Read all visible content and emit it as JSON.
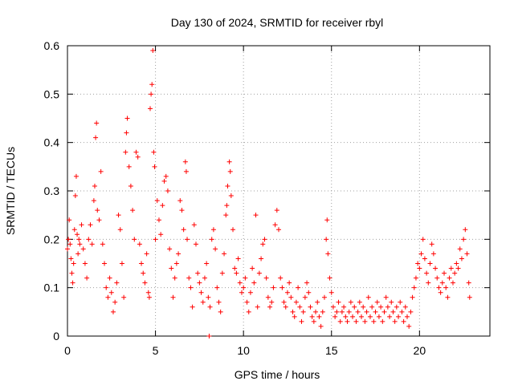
{
  "chart_data": {
    "type": "scatter",
    "title": "Day 130 of 2024, SRMTID for receiver rbyl",
    "xlabel": "GPS time / hours",
    "ylabel": "SRMTID / TECUs",
    "xlim": [
      0,
      24
    ],
    "ylim": [
      0,
      0.6
    ],
    "xticks": [
      "0",
      "5",
      "10",
      "15",
      "20"
    ],
    "xtick_values": [
      0,
      5,
      10,
      15,
      20
    ],
    "yticks": [
      "0",
      "0.1",
      "0.2",
      "0.3",
      "0.4",
      "0.5",
      "0.6"
    ],
    "ytick_values": [
      0,
      0.1,
      0.2,
      0.3,
      0.4,
      0.5,
      0.6
    ],
    "grid": true,
    "marker": "plus",
    "color": "#ff0000",
    "series": [
      {
        "name": "SRMTID",
        "points": [
          [
            0.0,
            0.18
          ],
          [
            0.05,
            0.2
          ],
          [
            0.1,
            0.24
          ],
          [
            0.15,
            0.19
          ],
          [
            0.2,
            0.16
          ],
          [
            0.25,
            0.13
          ],
          [
            0.3,
            0.11
          ],
          [
            0.35,
            0.15
          ],
          [
            0.4,
            0.22
          ],
          [
            0.45,
            0.29
          ],
          [
            0.5,
            0.33
          ],
          [
            0.55,
            0.21
          ],
          [
            0.6,
            0.17
          ],
          [
            0.65,
            0.2
          ],
          [
            0.7,
            0.19
          ],
          [
            0.8,
            0.23
          ],
          [
            0.9,
            0.18
          ],
          [
            1.0,
            0.15
          ],
          [
            1.1,
            0.12
          ],
          [
            1.2,
            0.2
          ],
          [
            1.3,
            0.23
          ],
          [
            1.4,
            0.19
          ],
          [
            1.5,
            0.28
          ],
          [
            1.55,
            0.31
          ],
          [
            1.6,
            0.41
          ],
          [
            1.65,
            0.44
          ],
          [
            1.7,
            0.26
          ],
          [
            1.8,
            0.24
          ],
          [
            1.9,
            0.34
          ],
          [
            2.0,
            0.19
          ],
          [
            2.1,
            0.15
          ],
          [
            2.2,
            0.1
          ],
          [
            2.3,
            0.08
          ],
          [
            2.4,
            0.12
          ],
          [
            2.5,
            0.09
          ],
          [
            2.6,
            0.05
          ],
          [
            2.7,
            0.07
          ],
          [
            2.8,
            0.11
          ],
          [
            2.9,
            0.25
          ],
          [
            3.0,
            0.22
          ],
          [
            3.1,
            0.15
          ],
          [
            3.2,
            0.08
          ],
          [
            3.3,
            0.38
          ],
          [
            3.35,
            0.42
          ],
          [
            3.4,
            0.45
          ],
          [
            3.5,
            0.35
          ],
          [
            3.6,
            0.31
          ],
          [
            3.7,
            0.26
          ],
          [
            3.8,
            0.2
          ],
          [
            3.9,
            0.38
          ],
          [
            4.0,
            0.37
          ],
          [
            4.1,
            0.19
          ],
          [
            4.2,
            0.15
          ],
          [
            4.3,
            0.13
          ],
          [
            4.4,
            0.11
          ],
          [
            4.5,
            0.17
          ],
          [
            4.6,
            0.09
          ],
          [
            4.65,
            0.08
          ],
          [
            4.7,
            0.47
          ],
          [
            4.75,
            0.5
          ],
          [
            4.8,
            0.52
          ],
          [
            4.85,
            0.59
          ],
          [
            4.9,
            0.38
          ],
          [
            4.95,
            0.35
          ],
          [
            5.0,
            0.2
          ],
          [
            5.1,
            0.28
          ],
          [
            5.2,
            0.24
          ],
          [
            5.3,
            0.21
          ],
          [
            5.4,
            0.27
          ],
          [
            5.5,
            0.32
          ],
          [
            5.6,
            0.33
          ],
          [
            5.7,
            0.3
          ],
          [
            5.8,
            0.18
          ],
          [
            5.9,
            0.14
          ],
          [
            6.0,
            0.08
          ],
          [
            6.1,
            0.12
          ],
          [
            6.2,
            0.15
          ],
          [
            6.3,
            0.17
          ],
          [
            6.4,
            0.28
          ],
          [
            6.5,
            0.26
          ],
          [
            6.6,
            0.22
          ],
          [
            6.7,
            0.36
          ],
          [
            6.75,
            0.34
          ],
          [
            6.8,
            0.2
          ],
          [
            6.9,
            0.12
          ],
          [
            7.0,
            0.1
          ],
          [
            7.1,
            0.06
          ],
          [
            7.2,
            0.23
          ],
          [
            7.3,
            0.19
          ],
          [
            7.4,
            0.13
          ],
          [
            7.5,
            0.11
          ],
          [
            7.6,
            0.09
          ],
          [
            7.7,
            0.07
          ],
          [
            7.8,
            0.12
          ],
          [
            7.9,
            0.15
          ],
          [
            8.0,
            0.08
          ],
          [
            8.05,
            0.0
          ],
          [
            8.1,
            0.06
          ],
          [
            8.2,
            0.2
          ],
          [
            8.3,
            0.22
          ],
          [
            8.4,
            0.18
          ],
          [
            8.5,
            0.1
          ],
          [
            8.6,
            0.07
          ],
          [
            8.7,
            0.05
          ],
          [
            8.8,
            0.13
          ],
          [
            8.9,
            0.17
          ],
          [
            9.0,
            0.25
          ],
          [
            9.05,
            0.27
          ],
          [
            9.1,
            0.31
          ],
          [
            9.2,
            0.36
          ],
          [
            9.25,
            0.34
          ],
          [
            9.3,
            0.29
          ],
          [
            9.4,
            0.22
          ],
          [
            9.5,
            0.14
          ],
          [
            9.6,
            0.13
          ],
          [
            9.7,
            0.16
          ],
          [
            9.8,
            0.11
          ],
          [
            9.9,
            0.09
          ],
          [
            10.0,
            0.1
          ],
          [
            10.1,
            0.12
          ],
          [
            10.2,
            0.07
          ],
          [
            10.3,
            0.05
          ],
          [
            10.4,
            0.09
          ],
          [
            10.5,
            0.14
          ],
          [
            10.6,
            0.11
          ],
          [
            10.7,
            0.25
          ],
          [
            10.8,
            0.06
          ],
          [
            10.9,
            0.13
          ],
          [
            11.0,
            0.16
          ],
          [
            11.1,
            0.19
          ],
          [
            11.2,
            0.2
          ],
          [
            11.3,
            0.12
          ],
          [
            11.4,
            0.08
          ],
          [
            11.5,
            0.06
          ],
          [
            11.6,
            0.07
          ],
          [
            11.7,
            0.1
          ],
          [
            11.8,
            0.23
          ],
          [
            11.9,
            0.26
          ],
          [
            12.0,
            0.22
          ],
          [
            12.1,
            0.12
          ],
          [
            12.2,
            0.1
          ],
          [
            12.3,
            0.07
          ],
          [
            12.4,
            0.06
          ],
          [
            12.5,
            0.09
          ],
          [
            12.6,
            0.11
          ],
          [
            12.7,
            0.08
          ],
          [
            12.8,
            0.05
          ],
          [
            12.9,
            0.04
          ],
          [
            13.0,
            0.07
          ],
          [
            13.1,
            0.1
          ],
          [
            13.2,
            0.06
          ],
          [
            13.3,
            0.03
          ],
          [
            13.4,
            0.05
          ],
          [
            13.5,
            0.08
          ],
          [
            13.6,
            0.11
          ],
          [
            13.7,
            0.09
          ],
          [
            13.8,
            0.06
          ],
          [
            13.9,
            0.04
          ],
          [
            14.0,
            0.03
          ],
          [
            14.1,
            0.05
          ],
          [
            14.2,
            0.07
          ],
          [
            14.3,
            0.04
          ],
          [
            14.4,
            0.02
          ],
          [
            14.5,
            0.05
          ],
          [
            14.6,
            0.08
          ],
          [
            14.7,
            0.2
          ],
          [
            14.75,
            0.24
          ],
          [
            14.8,
            0.17
          ],
          [
            14.9,
            0.12
          ],
          [
            15.0,
            0.09
          ],
          [
            15.1,
            0.06
          ],
          [
            15.2,
            0.04
          ],
          [
            15.3,
            0.05
          ],
          [
            15.4,
            0.07
          ],
          [
            15.5,
            0.03
          ],
          [
            15.6,
            0.05
          ],
          [
            15.7,
            0.06
          ],
          [
            15.8,
            0.04
          ],
          [
            15.9,
            0.03
          ],
          [
            16.0,
            0.05
          ],
          [
            16.1,
            0.07
          ],
          [
            16.2,
            0.04
          ],
          [
            16.3,
            0.06
          ],
          [
            16.4,
            0.03
          ],
          [
            16.5,
            0.05
          ],
          [
            16.6,
            0.07
          ],
          [
            16.7,
            0.04
          ],
          [
            16.8,
            0.06
          ],
          [
            16.9,
            0.03
          ],
          [
            17.0,
            0.05
          ],
          [
            17.1,
            0.08
          ],
          [
            17.2,
            0.04
          ],
          [
            17.3,
            0.06
          ],
          [
            17.4,
            0.03
          ],
          [
            17.5,
            0.05
          ],
          [
            17.6,
            0.07
          ],
          [
            17.7,
            0.04
          ],
          [
            17.8,
            0.06
          ],
          [
            17.9,
            0.03
          ],
          [
            18.0,
            0.05
          ],
          [
            18.1,
            0.08
          ],
          [
            18.2,
            0.06
          ],
          [
            18.3,
            0.04
          ],
          [
            18.4,
            0.07
          ],
          [
            18.5,
            0.05
          ],
          [
            18.6,
            0.03
          ],
          [
            18.7,
            0.06
          ],
          [
            18.8,
            0.04
          ],
          [
            18.9,
            0.07
          ],
          [
            19.0,
            0.05
          ],
          [
            19.1,
            0.03
          ],
          [
            19.2,
            0.06
          ],
          [
            19.3,
            0.04
          ],
          [
            19.4,
            0.02
          ],
          [
            19.5,
            0.05
          ],
          [
            19.6,
            0.08
          ],
          [
            19.7,
            0.1
          ],
          [
            19.8,
            0.12
          ],
          [
            19.9,
            0.15
          ],
          [
            20.0,
            0.14
          ],
          [
            20.1,
            0.17
          ],
          [
            20.2,
            0.2
          ],
          [
            20.3,
            0.16
          ],
          [
            20.4,
            0.13
          ],
          [
            20.5,
            0.11
          ],
          [
            20.6,
            0.15
          ],
          [
            20.7,
            0.19
          ],
          [
            20.8,
            0.17
          ],
          [
            20.9,
            0.14
          ],
          [
            21.0,
            0.12
          ],
          [
            21.1,
            0.1
          ],
          [
            21.2,
            0.09
          ],
          [
            21.3,
            0.11
          ],
          [
            21.4,
            0.13
          ],
          [
            21.5,
            0.1
          ],
          [
            21.6,
            0.08
          ],
          [
            21.7,
            0.12
          ],
          [
            21.8,
            0.14
          ],
          [
            21.9,
            0.11
          ],
          [
            22.0,
            0.13
          ],
          [
            22.1,
            0.15
          ],
          [
            22.2,
            0.14
          ],
          [
            22.3,
            0.18
          ],
          [
            22.4,
            0.16
          ],
          [
            22.5,
            0.2
          ],
          [
            22.6,
            0.22
          ],
          [
            22.7,
            0.17
          ],
          [
            22.8,
            0.11
          ],
          [
            22.85,
            0.08
          ]
        ]
      }
    ]
  }
}
